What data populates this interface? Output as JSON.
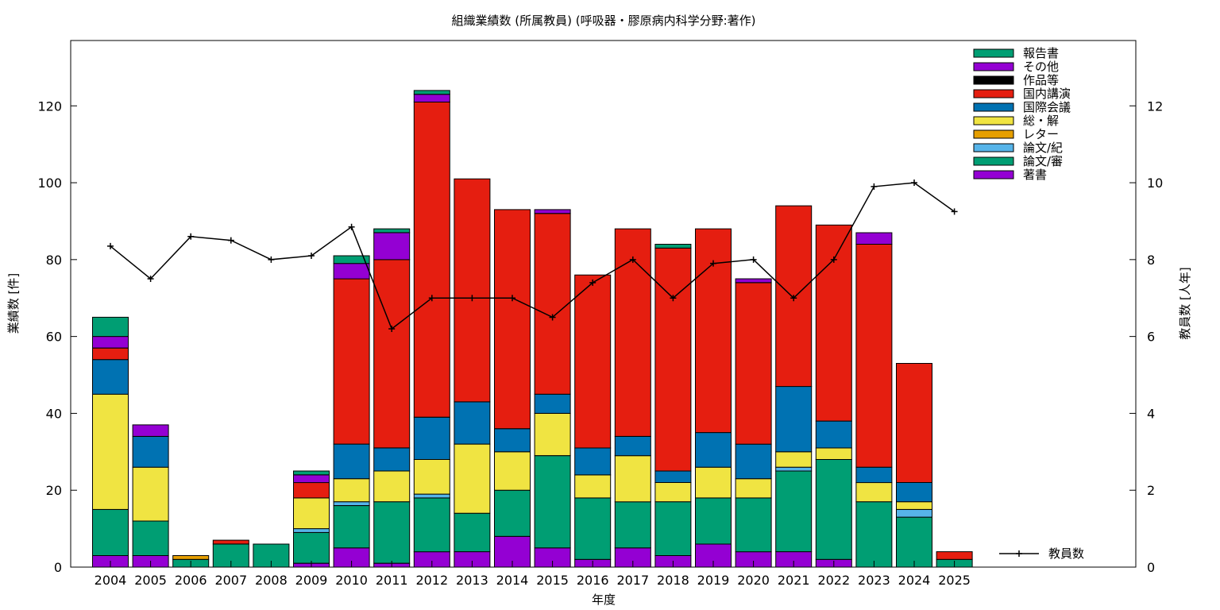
{
  "chart_data": {
    "type": "bar",
    "stacked": true,
    "title": "組織業績数 (所属教員) (呼吸器・膠原病内科学分野:著作)",
    "xlabel": "年度",
    "ylabel": "業績数 [件]",
    "y2label": "教員数 [人年]",
    "ylim": [
      0,
      137
    ],
    "y2lim": [
      0,
      13.7
    ],
    "yticks": [
      0,
      20,
      40,
      60,
      80,
      100,
      120
    ],
    "y2ticks": [
      0,
      2,
      4,
      6,
      8,
      10,
      12
    ],
    "grid": false,
    "legend_position": "top-right",
    "categories": [
      "2004",
      "2005",
      "2006",
      "2007",
      "2008",
      "2009",
      "2010",
      "2011",
      "2012",
      "2013",
      "2014",
      "2015",
      "2016",
      "2017",
      "2018",
      "2019",
      "2020",
      "2021",
      "2022",
      "2023",
      "2024",
      "2025"
    ],
    "series": [
      {
        "name": "著書",
        "color": "#9400d3",
        "values": [
          3,
          3,
          0,
          0,
          0,
          1,
          5,
          1,
          4,
          4,
          8,
          5,
          2,
          5,
          3,
          6,
          4,
          4,
          2,
          0,
          0,
          0
        ]
      },
      {
        "name": "論文/審",
        "color": "#009e73",
        "values": [
          12,
          9,
          2,
          6,
          6,
          8,
          11,
          16,
          14,
          10,
          12,
          24,
          16,
          12,
          14,
          12,
          14,
          21,
          26,
          17,
          13,
          2
        ]
      },
      {
        "name": "論文/紀",
        "color": "#56b4e9",
        "values": [
          0,
          0,
          0,
          0,
          0,
          1,
          1,
          0,
          1,
          0,
          0,
          0,
          0,
          0,
          0,
          0,
          0,
          1,
          0,
          0,
          2,
          0
        ]
      },
      {
        "name": "レター",
        "color": "#e69f00",
        "values": [
          0,
          0,
          1,
          0,
          0,
          0,
          0,
          0,
          0,
          0,
          0,
          0,
          0,
          0,
          0,
          0,
          0,
          0,
          0,
          0,
          0,
          0
        ]
      },
      {
        "name": "総・解",
        "color": "#f0e442",
        "values": [
          30,
          14,
          0,
          0,
          0,
          8,
          6,
          8,
          9,
          18,
          10,
          11,
          6,
          12,
          5,
          8,
          5,
          4,
          3,
          5,
          2,
          0
        ]
      },
      {
        "name": "国際会議",
        "color": "#0072b2",
        "values": [
          9,
          8,
          0,
          0,
          0,
          0,
          9,
          6,
          11,
          11,
          6,
          5,
          7,
          5,
          3,
          9,
          9,
          17,
          7,
          4,
          5,
          0
        ]
      },
      {
        "name": "国内講演",
        "color": "#e51e10",
        "values": [
          3,
          0,
          0,
          1,
          0,
          4,
          43,
          49,
          82,
          58,
          57,
          47,
          45,
          54,
          58,
          53,
          42,
          47,
          51,
          58,
          31,
          2
        ]
      },
      {
        "name": "作品等",
        "color": "#000000",
        "values": [
          0,
          0,
          0,
          0,
          0,
          0,
          0,
          0,
          0,
          0,
          0,
          0,
          0,
          0,
          0,
          0,
          0,
          0,
          0,
          0,
          0,
          0
        ]
      },
      {
        "name": "その他",
        "color": "#9400d3",
        "values": [
          3,
          3,
          0,
          0,
          0,
          2,
          4,
          7,
          2,
          0,
          0,
          1,
          0,
          0,
          0,
          0,
          1,
          0,
          0,
          3,
          0,
          0
        ]
      },
      {
        "name": "報告書",
        "color": "#009e73",
        "values": [
          5,
          0,
          0,
          0,
          0,
          1,
          2,
          1,
          1,
          0,
          0,
          0,
          0,
          0,
          1,
          0,
          0,
          0,
          0,
          0,
          0,
          0
        ]
      }
    ],
    "line_series": {
      "name": "教員数",
      "color": "#000000",
      "axis": "right",
      "values": [
        8.35,
        7.5,
        8.6,
        8.5,
        8.0,
        8.1,
        8.85,
        6.2,
        7.0,
        7.0,
        7.0,
        6.5,
        7.4,
        8.0,
        7.0,
        7.9,
        8.0,
        7.0,
        8.0,
        9.9,
        10.0,
        9.25
      ]
    }
  }
}
